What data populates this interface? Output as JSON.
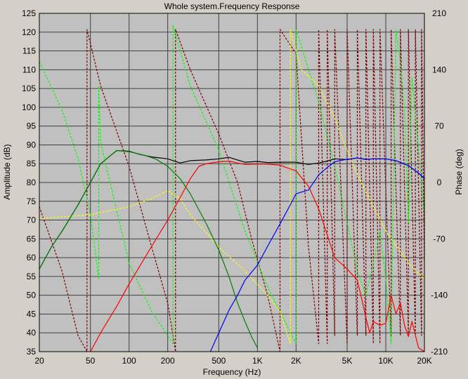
{
  "chart_data": {
    "type": "line",
    "title": "Whole system.Frequency Response",
    "xlabel": "Frequency (Hz)",
    "ylabel": "Amplitude (dB)",
    "y2label": "Phase (deg)",
    "xscale": "log",
    "xlim": [
      20,
      20000
    ],
    "ylim": [
      35,
      125
    ],
    "y2lim": [
      -210,
      210
    ],
    "grid": true,
    "legend": "none",
    "colors": {
      "background": "#c0c0c0",
      "grid": "#404040"
    },
    "xticks": [
      {
        "v": 20,
        "label": "20"
      },
      {
        "v": 50,
        "label": "50"
      },
      {
        "v": 100,
        "label": "100"
      },
      {
        "v": 200,
        "label": "200"
      },
      {
        "v": 500,
        "label": "500"
      },
      {
        "v": 1000,
        "label": "1K"
      },
      {
        "v": 2000,
        "label": "2K"
      },
      {
        "v": 5000,
        "label": "5K"
      },
      {
        "v": 10000,
        "label": "10K"
      },
      {
        "v": 20000,
        "label": "20K"
      }
    ],
    "yticks": [
      35,
      40,
      45,
      50,
      55,
      60,
      65,
      70,
      75,
      80,
      85,
      90,
      95,
      100,
      105,
      110,
      115,
      120,
      125
    ],
    "y2ticks": [
      -210,
      -140,
      -70,
      0,
      70,
      140,
      210
    ],
    "amplitude_series": [
      {
        "axis": "y",
        "style": "solid",
        "color": "#000000",
        "points": [
          [
            20,
            57
          ],
          [
            25,
            63
          ],
          [
            30,
            67
          ],
          [
            40,
            74
          ],
          [
            50,
            80
          ],
          [
            60,
            85
          ],
          [
            80,
            88.5
          ],
          [
            100,
            88.3
          ],
          [
            120,
            87.5
          ],
          [
            150,
            86.8
          ],
          [
            200,
            86.3
          ],
          [
            250,
            85.2
          ],
          [
            300,
            85.8
          ],
          [
            400,
            86
          ],
          [
            500,
            86.3
          ],
          [
            600,
            86.7
          ],
          [
            700,
            86
          ],
          [
            800,
            85.4
          ],
          [
            1000,
            85.6
          ],
          [
            1200,
            85.3
          ],
          [
            1500,
            85.4
          ],
          [
            2000,
            85.4
          ],
          [
            2500,
            84.8
          ],
          [
            3000,
            85.2
          ],
          [
            3500,
            85.7
          ],
          [
            4000,
            86.3
          ],
          [
            5000,
            86.1
          ],
          [
            6000,
            86.5
          ],
          [
            7000,
            86.1
          ],
          [
            8000,
            86.3
          ],
          [
            10000,
            86.3
          ],
          [
            12000,
            85.8
          ],
          [
            15000,
            84.5
          ],
          [
            18000,
            82.5
          ],
          [
            20000,
            81
          ]
        ]
      },
      {
        "axis": "y",
        "style": "solid",
        "color": "#008000",
        "points": [
          [
            20,
            57
          ],
          [
            25,
            63
          ],
          [
            30,
            67
          ],
          [
            40,
            74
          ],
          [
            50,
            80
          ],
          [
            60,
            85
          ],
          [
            80,
            88.5
          ],
          [
            100,
            88.2
          ],
          [
            130,
            87.3
          ],
          [
            160,
            86.3
          ],
          [
            200,
            84.3
          ],
          [
            250,
            81
          ],
          [
            300,
            77
          ],
          [
            400,
            69
          ],
          [
            500,
            62
          ],
          [
            600,
            55
          ],
          [
            700,
            48
          ],
          [
            800,
            43
          ],
          [
            900,
            39
          ],
          [
            1000,
            36
          ]
        ]
      },
      {
        "axis": "y",
        "style": "solid",
        "color": "#ff0000",
        "points": [
          [
            50,
            35
          ],
          [
            60,
            40
          ],
          [
            80,
            47
          ],
          [
            100,
            53
          ],
          [
            150,
            63
          ],
          [
            200,
            70
          ],
          [
            250,
            76
          ],
          [
            300,
            81
          ],
          [
            350,
            84.3
          ],
          [
            400,
            85
          ],
          [
            500,
            85.5
          ],
          [
            600,
            85.7
          ],
          [
            700,
            85.2
          ],
          [
            800,
            84.8
          ],
          [
            1000,
            84.9
          ],
          [
            1200,
            84.9
          ],
          [
            1500,
            84.6
          ],
          [
            1800,
            83.6
          ],
          [
            2000,
            83.1
          ],
          [
            2500,
            79
          ],
          [
            3000,
            73
          ],
          [
            3500,
            66
          ],
          [
            4000,
            60
          ],
          [
            5000,
            57
          ],
          [
            6000,
            54
          ],
          [
            6500,
            49
          ],
          [
            7000,
            44
          ],
          [
            7500,
            40
          ],
          [
            8000,
            43
          ],
          [
            9000,
            42
          ],
          [
            10000,
            42.5
          ],
          [
            11000,
            50
          ],
          [
            12000,
            45
          ],
          [
            13000,
            48
          ],
          [
            14000,
            42
          ],
          [
            15000,
            39
          ],
          [
            16000,
            43
          ],
          [
            18000,
            36
          ],
          [
            20000,
            35
          ]
        ]
      },
      {
        "axis": "y",
        "style": "solid",
        "color": "#0000ff",
        "points": [
          [
            430,
            35
          ],
          [
            500,
            40
          ],
          [
            600,
            46
          ],
          [
            700,
            50
          ],
          [
            800,
            54
          ],
          [
            1000,
            58
          ],
          [
            1200,
            63
          ],
          [
            1500,
            69
          ],
          [
            1800,
            74
          ],
          [
            2000,
            77
          ],
          [
            2500,
            78
          ],
          [
            3000,
            82
          ],
          [
            3500,
            84
          ],
          [
            4000,
            85.5
          ],
          [
            5000,
            86.2
          ],
          [
            6000,
            86.5
          ],
          [
            7000,
            86.2
          ],
          [
            8000,
            86.3
          ],
          [
            10000,
            86.3
          ],
          [
            12000,
            85.8
          ],
          [
            15000,
            84.5
          ],
          [
            18000,
            82.5
          ],
          [
            20000,
            81
          ]
        ]
      }
    ],
    "phase_series": [
      {
        "axis": "y2",
        "style": "dashed",
        "color": "#800000",
        "points": [
          [
            20,
            -30
          ],
          [
            30,
            -110
          ],
          [
            40,
            -190
          ],
          [
            47,
            -210
          ],
          [
            47,
            190
          ],
          [
            60,
            120
          ],
          [
            100,
            20
          ],
          [
            150,
            -80
          ],
          [
            200,
            -150
          ],
          [
            230,
            -210
          ],
          [
            230,
            190
          ],
          [
            300,
            140
          ],
          [
            500,
            60
          ],
          [
            700,
            0
          ],
          [
            900,
            -70
          ],
          [
            1200,
            -140
          ],
          [
            1500,
            -210
          ],
          [
            1500,
            190
          ],
          [
            2000,
            160
          ],
          [
            2500,
            -80
          ],
          [
            3000,
            -200
          ],
          [
            3000,
            190
          ],
          [
            3500,
            -200
          ],
          [
            3500,
            190
          ],
          [
            4000,
            -190
          ],
          [
            4000,
            190
          ],
          [
            5000,
            -200
          ],
          [
            5000,
            190
          ],
          [
            6000,
            -190
          ],
          [
            6000,
            190
          ],
          [
            7000,
            -190
          ],
          [
            7000,
            190
          ],
          [
            8000,
            -200
          ],
          [
            8000,
            190
          ],
          [
            9000,
            -200
          ],
          [
            9000,
            190
          ],
          [
            11000,
            -190
          ],
          [
            11000,
            190
          ],
          [
            13000,
            -190
          ],
          [
            13000,
            190
          ],
          [
            15000,
            -190
          ],
          [
            15000,
            190
          ],
          [
            17000,
            -190
          ],
          [
            17000,
            190
          ],
          [
            19000,
            -190
          ],
          [
            19000,
            190
          ],
          [
            20000,
            -100
          ]
        ]
      },
      {
        "axis": "y2",
        "style": "dashed",
        "color": "#00ff00",
        "points": [
          [
            20,
            150
          ],
          [
            30,
            90
          ],
          [
            40,
            30
          ],
          [
            50,
            -40
          ],
          [
            58,
            -120
          ],
          [
            58,
            120
          ],
          [
            60,
            50
          ],
          [
            100,
            -100
          ],
          [
            150,
            -160
          ],
          [
            220,
            -200
          ],
          [
            220,
            195
          ],
          [
            300,
            120
          ],
          [
            500,
            40
          ],
          [
            800,
            -60
          ],
          [
            1200,
            -130
          ],
          [
            2000,
            -200
          ],
          [
            2000,
            190
          ],
          [
            3000,
            100
          ],
          [
            4000,
            20
          ],
          [
            5000,
            -50
          ],
          [
            6000,
            -110
          ],
          [
            7000,
            -140
          ],
          [
            8000,
            -100
          ],
          [
            9000,
            -60
          ],
          [
            10000,
            -120
          ],
          [
            11000,
            -200
          ],
          [
            12000,
            190
          ],
          [
            13000,
            150
          ],
          [
            14000,
            90
          ],
          [
            15000,
            -50
          ],
          [
            16000,
            130
          ],
          [
            20000,
            -40
          ]
        ]
      },
      {
        "axis": "y2",
        "style": "dashed",
        "color": "#ffff00",
        "points": [
          [
            20,
            -45
          ],
          [
            50,
            -40
          ],
          [
            100,
            -30
          ],
          [
            150,
            -20
          ],
          [
            200,
            -10
          ],
          [
            250,
            -20
          ],
          [
            300,
            -40
          ],
          [
            500,
            -80
          ],
          [
            800,
            -110
          ],
          [
            1200,
            -140
          ],
          [
            1500,
            -160
          ],
          [
            1800,
            -200
          ],
          [
            1800,
            190
          ],
          [
            2200,
            140
          ],
          [
            3000,
            120
          ],
          [
            4000,
            80
          ],
          [
            5000,
            40
          ],
          [
            6000,
            10
          ],
          [
            8000,
            -30
          ],
          [
            10000,
            -60
          ],
          [
            15000,
            -100
          ],
          [
            20000,
            -120
          ]
        ]
      }
    ]
  }
}
